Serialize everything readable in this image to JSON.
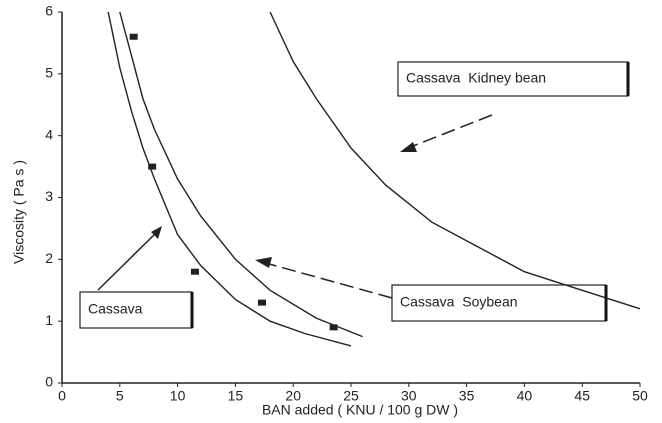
{
  "chart_data": {
    "type": "line",
    "xlabel": "BAN added ( KNU / 100 g DW )",
    "ylabel": "Viscosity ( Pa s )",
    "xlim": [
      0,
      50
    ],
    "ylim": [
      0,
      6
    ],
    "xticks": [
      0,
      5,
      10,
      15,
      20,
      25,
      30,
      35,
      40,
      45,
      50
    ],
    "yticks": [
      0,
      1,
      2,
      3,
      4,
      5,
      6
    ],
    "series": [
      {
        "name": "Cassava",
        "color": "#222222",
        "x": [
          4,
          5,
          6,
          7,
          8,
          10,
          12,
          15,
          18,
          21,
          25
        ],
        "values": [
          6,
          5.1,
          4.4,
          3.8,
          3.3,
          2.4,
          1.9,
          1.35,
          1.0,
          0.8,
          0.6
        ]
      },
      {
        "name": "Cassava  Soybean",
        "color": "#222222",
        "x": [
          5,
          6,
          7,
          8,
          10,
          12,
          15,
          18,
          22,
          26
        ],
        "values": [
          6,
          5.3,
          4.6,
          4.1,
          3.3,
          2.7,
          2.0,
          1.5,
          1.05,
          0.75
        ]
      },
      {
        "name": "Cassava  Kidney bean",
        "color": "#222222",
        "x": [
          18,
          20,
          22,
          25,
          28,
          32,
          36,
          40,
          45,
          50
        ],
        "values": [
          6,
          5.2,
          4.6,
          3.8,
          3.2,
          2.6,
          2.2,
          1.8,
          1.5,
          1.2
        ]
      }
    ],
    "points": {
      "x": [
        6.2,
        7.8,
        11.5,
        17.3,
        23.5
      ],
      "values": [
        5.6,
        3.5,
        1.8,
        1.3,
        0.9
      ],
      "color": "#222222"
    }
  }
}
